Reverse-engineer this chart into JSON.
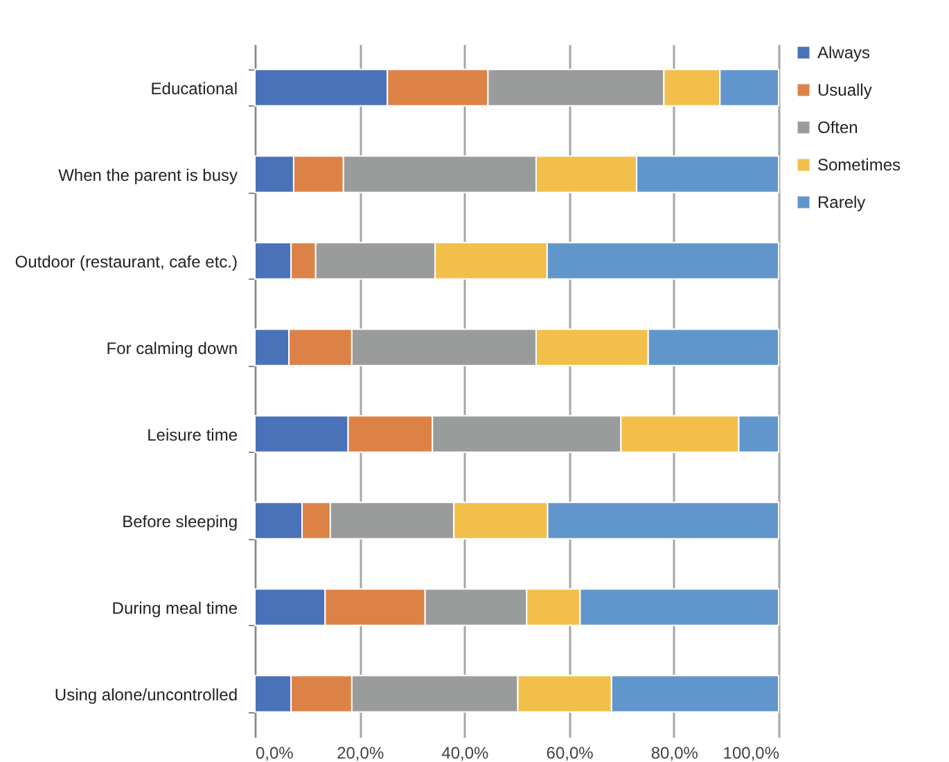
{
  "chart_data": {
    "type": "bar",
    "orientation": "horizontal",
    "stacked": true,
    "categories": [
      "Educational",
      "When the parent is busy",
      "Outdoor (restaurant, cafe etc.)",
      "For calming down",
      "Leisure time",
      "Before sleeping",
      "During meal time",
      "Using alone/uncontrolled"
    ],
    "series": [
      {
        "name": "Always",
        "color": "#4a72b8",
        "values": [
          25.3,
          7.4,
          6.9,
          6.5,
          17.8,
          9.0,
          13.4,
          6.9
        ]
      },
      {
        "name": "Usually",
        "color": "#dd8247",
        "values": [
          19.2,
          9.5,
          4.7,
          12.0,
          16.1,
          5.4,
          19.1,
          11.6
        ]
      },
      {
        "name": "Often",
        "color": "#9a9c9c",
        "values": [
          33.6,
          36.8,
          22.8,
          35.2,
          36.0,
          23.6,
          19.4,
          31.7
        ]
      },
      {
        "name": "Sometimes",
        "color": "#f3bf4b",
        "values": [
          10.7,
          19.2,
          21.4,
          21.4,
          22.5,
          17.9,
          10.2,
          17.9
        ]
      },
      {
        "name": "Rarely",
        "color": "#6196cd",
        "values": [
          11.2,
          27.1,
          44.2,
          24.9,
          7.6,
          44.1,
          37.9,
          31.9
        ]
      }
    ],
    "xlim": [
      0,
      100
    ],
    "xticks": [
      {
        "value": 0,
        "label": "0,0%"
      },
      {
        "value": 20,
        "label": "20,0%"
      },
      {
        "value": 40,
        "label": "40,0%"
      },
      {
        "value": 60,
        "label": "60,0%"
      },
      {
        "value": 80,
        "label": "80,0%"
      },
      {
        "value": 100,
        "label": "100,0%"
      }
    ],
    "grid": "x",
    "legend": "right"
  }
}
